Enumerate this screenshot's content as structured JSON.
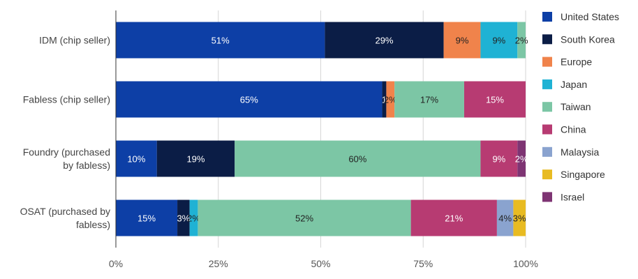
{
  "chart_data": {
    "type": "bar",
    "orientation": "horizontal",
    "stacked": true,
    "percent": true,
    "categories": [
      [
        "IDM (chip seller)"
      ],
      [
        "Fabless (chip seller)"
      ],
      [
        "Foundry (purchased",
        "by fabless)"
      ],
      [
        "OSAT (purchased by",
        "fabless)"
      ]
    ],
    "x_ticks": [
      "0%",
      "25%",
      "50%",
      "75%",
      "100%"
    ],
    "xlim": [
      0,
      100
    ],
    "grid": true,
    "legend_position": "right",
    "series": [
      {
        "name": "United States",
        "color": "#0d3fa6",
        "label_color": "#ffffff",
        "values": [
          51,
          65,
          10,
          15
        ],
        "labels": [
          "51%",
          "65%",
          "10%",
          "15%"
        ]
      },
      {
        "name": "South Korea",
        "color": "#0b1d46",
        "label_color": "#ffffff",
        "values": [
          29,
          1,
          19,
          3
        ],
        "labels": [
          "29%",
          "1",
          "19%",
          "3%"
        ]
      },
      {
        "name": "Europe",
        "color": "#f0834b",
        "label_color": "#222222",
        "values": [
          9,
          2,
          0,
          0
        ],
        "labels": [
          "9%",
          "2%",
          "",
          ""
        ]
      },
      {
        "name": "Japan",
        "color": "#1fb2d4",
        "label_color": "#222222",
        "values": [
          9,
          0,
          0,
          2
        ],
        "labels": [
          "9%",
          "",
          "",
          "2%"
        ]
      },
      {
        "name": "Taiwan",
        "color": "#7cc6a5",
        "label_color": "#222222",
        "values": [
          2,
          17,
          60,
          52
        ],
        "labels": [
          "2%",
          "17%",
          "60%",
          "52%"
        ]
      },
      {
        "name": "China",
        "color": "#b73b72",
        "label_color": "#ffffff",
        "values": [
          0,
          15,
          9,
          21
        ],
        "labels": [
          "",
          "15%",
          "9%",
          "21%"
        ]
      },
      {
        "name": "Malaysia",
        "color": "#8aa3cf",
        "label_color": "#222222",
        "values": [
          0,
          0,
          0,
          4
        ],
        "labels": [
          "",
          "",
          "",
          "4%"
        ]
      },
      {
        "name": "Singapore",
        "color": "#e8bb22",
        "label_color": "#222222",
        "values": [
          0,
          0,
          0,
          3
        ],
        "labels": [
          "",
          "",
          "",
          "3%"
        ]
      },
      {
        "name": "Israel",
        "color": "#7e3473",
        "label_color": "#ffffff",
        "values": [
          0,
          0,
          2,
          0
        ],
        "labels": [
          "",
          "",
          "2%",
          ""
        ]
      }
    ]
  }
}
